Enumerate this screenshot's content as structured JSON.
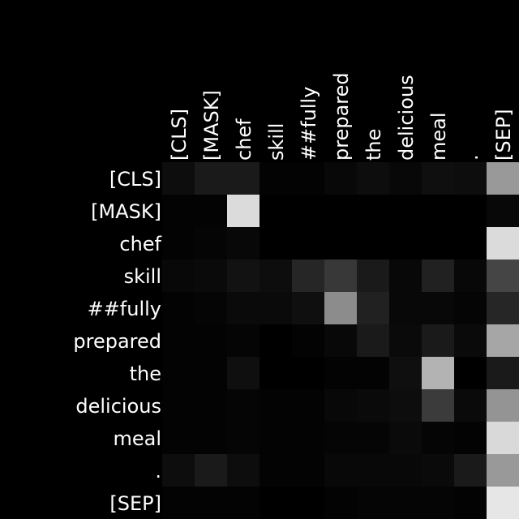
{
  "chart_data": {
    "type": "heatmap",
    "title": "",
    "xlabel": "",
    "ylabel": "",
    "x_labels": [
      "[CLS]",
      "[MASK]",
      "chef",
      "skill",
      "##fully",
      "prepared",
      "the",
      "delicious",
      "meal",
      ".",
      "[SEP]"
    ],
    "y_labels": [
      "[CLS]",
      "[MASK]",
      "chef",
      "skill",
      "##fully",
      "prepared",
      "the",
      "delicious",
      "meal",
      ".",
      "[SEP]"
    ],
    "value_range": [
      0,
      1
    ],
    "colormap": "black-to-white grayscale",
    "background": "#000000",
    "label_color": "#ffffff",
    "values": [
      [
        0.05,
        0.1,
        0.1,
        0.01,
        0.01,
        0.03,
        0.05,
        0.03,
        0.06,
        0.05,
        0.6
      ],
      [
        0.01,
        0.01,
        0.86,
        0.0,
        0.0,
        0.0,
        0.0,
        0.0,
        0.0,
        0.0,
        0.03
      ],
      [
        0.01,
        0.02,
        0.03,
        0.0,
        0.0,
        0.0,
        0.0,
        0.0,
        0.0,
        0.0,
        0.86
      ],
      [
        0.03,
        0.04,
        0.07,
        0.05,
        0.15,
        0.22,
        0.1,
        0.03,
        0.13,
        0.03,
        0.27
      ],
      [
        0.01,
        0.02,
        0.04,
        0.04,
        0.06,
        0.55,
        0.13,
        0.03,
        0.03,
        0.02,
        0.15
      ],
      [
        0.01,
        0.01,
        0.02,
        0.0,
        0.01,
        0.03,
        0.1,
        0.04,
        0.1,
        0.04,
        0.65
      ],
      [
        0.01,
        0.01,
        0.06,
        0.0,
        0.0,
        0.01,
        0.01,
        0.06,
        0.7,
        0.0,
        0.1
      ],
      [
        0.01,
        0.01,
        0.02,
        0.01,
        0.01,
        0.03,
        0.04,
        0.05,
        0.23,
        0.04,
        0.58
      ],
      [
        0.01,
        0.01,
        0.02,
        0.01,
        0.01,
        0.02,
        0.02,
        0.04,
        0.02,
        0.01,
        0.85
      ],
      [
        0.05,
        0.1,
        0.05,
        0.01,
        0.01,
        0.03,
        0.03,
        0.03,
        0.04,
        0.1,
        0.6
      ],
      [
        0.01,
        0.01,
        0.01,
        0.0,
        0.0,
        0.01,
        0.02,
        0.02,
        0.02,
        0.01,
        0.9
      ]
    ]
  }
}
